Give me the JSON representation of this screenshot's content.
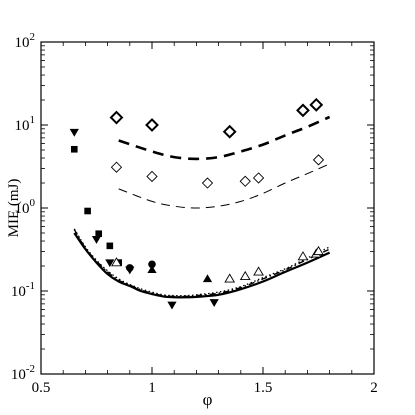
{
  "chart_data": {
    "type": "scatter",
    "title": "",
    "xlabel": "φ",
    "ylabel": "MIE (mJ)",
    "xlim": [
      0.5,
      2.0
    ],
    "ylim": [
      0.01,
      100
    ],
    "y_scale": "log",
    "x_ticks": [
      "0.5",
      "1",
      "1.5",
      "2"
    ],
    "x_tick_values": [
      0.5,
      1.0,
      1.5,
      2.0
    ],
    "y_ticks": [
      {
        "base": "10",
        "exp": "-2",
        "value": 0.01
      },
      {
        "base": "10",
        "exp": "-1",
        "value": 0.1
      },
      {
        "base": "10",
        "exp": "0",
        "value": 1
      },
      {
        "base": "10",
        "exp": "1",
        "value": 10
      },
      {
        "base": "10",
        "exp": "2",
        "value": 100
      }
    ],
    "grid": false,
    "legend": "none",
    "lines": [
      {
        "style": "thick-dashed",
        "x": [
          0.85,
          1.0,
          1.1,
          1.2,
          1.3,
          1.4,
          1.5,
          1.6,
          1.7,
          1.8
        ],
        "y": [
          6.5,
          4.8,
          4.1,
          3.9,
          4.1,
          4.8,
          5.8,
          7.5,
          9.5,
          12.5
        ]
      },
      {
        "style": "thin-dashed",
        "x": [
          0.85,
          1.0,
          1.1,
          1.2,
          1.3,
          1.4,
          1.5,
          1.6,
          1.7,
          1.8
        ],
        "y": [
          1.7,
          1.2,
          1.05,
          1.0,
          1.05,
          1.2,
          1.5,
          2.0,
          2.6,
          3.4
        ]
      },
      {
        "style": "solid",
        "x": [
          0.65,
          0.7,
          0.75,
          0.8,
          0.85,
          0.9,
          0.95,
          1.0,
          1.05,
          1.1,
          1.15,
          1.2,
          1.3,
          1.4,
          1.5,
          1.6,
          1.7,
          1.8
        ],
        "y": [
          0.5,
          0.32,
          0.22,
          0.16,
          0.13,
          0.115,
          0.1,
          0.092,
          0.086,
          0.084,
          0.084,
          0.085,
          0.09,
          0.105,
          0.13,
          0.17,
          0.22,
          0.29
        ]
      },
      {
        "style": "dash-dot",
        "x": [
          0.65,
          0.7,
          0.75,
          0.8,
          0.85,
          0.9,
          0.95,
          1.0,
          1.05,
          1.1,
          1.15,
          1.2,
          1.3,
          1.4,
          1.5,
          1.6,
          1.7,
          1.8
        ],
        "y": [
          0.55,
          0.33,
          0.23,
          0.17,
          0.135,
          0.118,
          0.103,
          0.094,
          0.088,
          0.086,
          0.086,
          0.088,
          0.094,
          0.11,
          0.14,
          0.18,
          0.24,
          0.32
        ]
      },
      {
        "style": "dotted",
        "x": [
          0.65,
          0.7,
          0.75,
          0.8,
          0.85,
          0.9,
          0.95,
          1.0,
          1.05,
          1.1,
          1.15,
          1.2,
          1.3,
          1.4,
          1.5,
          1.6,
          1.7,
          1.8
        ],
        "y": [
          0.56,
          0.34,
          0.235,
          0.175,
          0.14,
          0.12,
          0.106,
          0.097,
          0.09,
          0.088,
          0.088,
          0.09,
          0.097,
          0.113,
          0.145,
          0.185,
          0.25,
          0.34
        ]
      }
    ],
    "series": [
      {
        "marker": "diamond-bold",
        "x": [
          0.84,
          1.0,
          1.35,
          1.68,
          1.74
        ],
        "y": [
          12.3,
          10.0,
          8.3,
          15.0,
          17.5
        ]
      },
      {
        "marker": "diamond-thin",
        "x": [
          0.84,
          1.0,
          1.25,
          1.42,
          1.48,
          1.75
        ],
        "y": [
          3.1,
          2.4,
          2.0,
          2.1,
          2.3,
          3.8
        ]
      },
      {
        "marker": "triangle-down-filled",
        "x": [
          0.65,
          0.75,
          0.81,
          0.9,
          1.09,
          1.28
        ],
        "y": [
          8.2,
          0.42,
          0.22,
          0.18,
          0.068,
          0.073
        ]
      },
      {
        "marker": "square-filled",
        "x": [
          0.65,
          0.71,
          0.76,
          0.81,
          0.85
        ],
        "y": [
          5.1,
          0.92,
          0.49,
          0.35,
          0.22
        ]
      },
      {
        "marker": "triangle-up-filled",
        "x": [
          0.84,
          1.0,
          1.25
        ],
        "y": [
          0.22,
          0.18,
          0.14
        ]
      },
      {
        "marker": "circle-filled",
        "x": [
          0.9,
          1.0
        ],
        "y": [
          0.19,
          0.21
        ]
      },
      {
        "marker": "triangle-up-open",
        "x": [
          0.84,
          1.35,
          1.42,
          1.48,
          1.68,
          1.74,
          1.75
        ],
        "y": [
          0.22,
          0.14,
          0.15,
          0.17,
          0.26,
          0.28,
          0.3
        ]
      }
    ]
  }
}
